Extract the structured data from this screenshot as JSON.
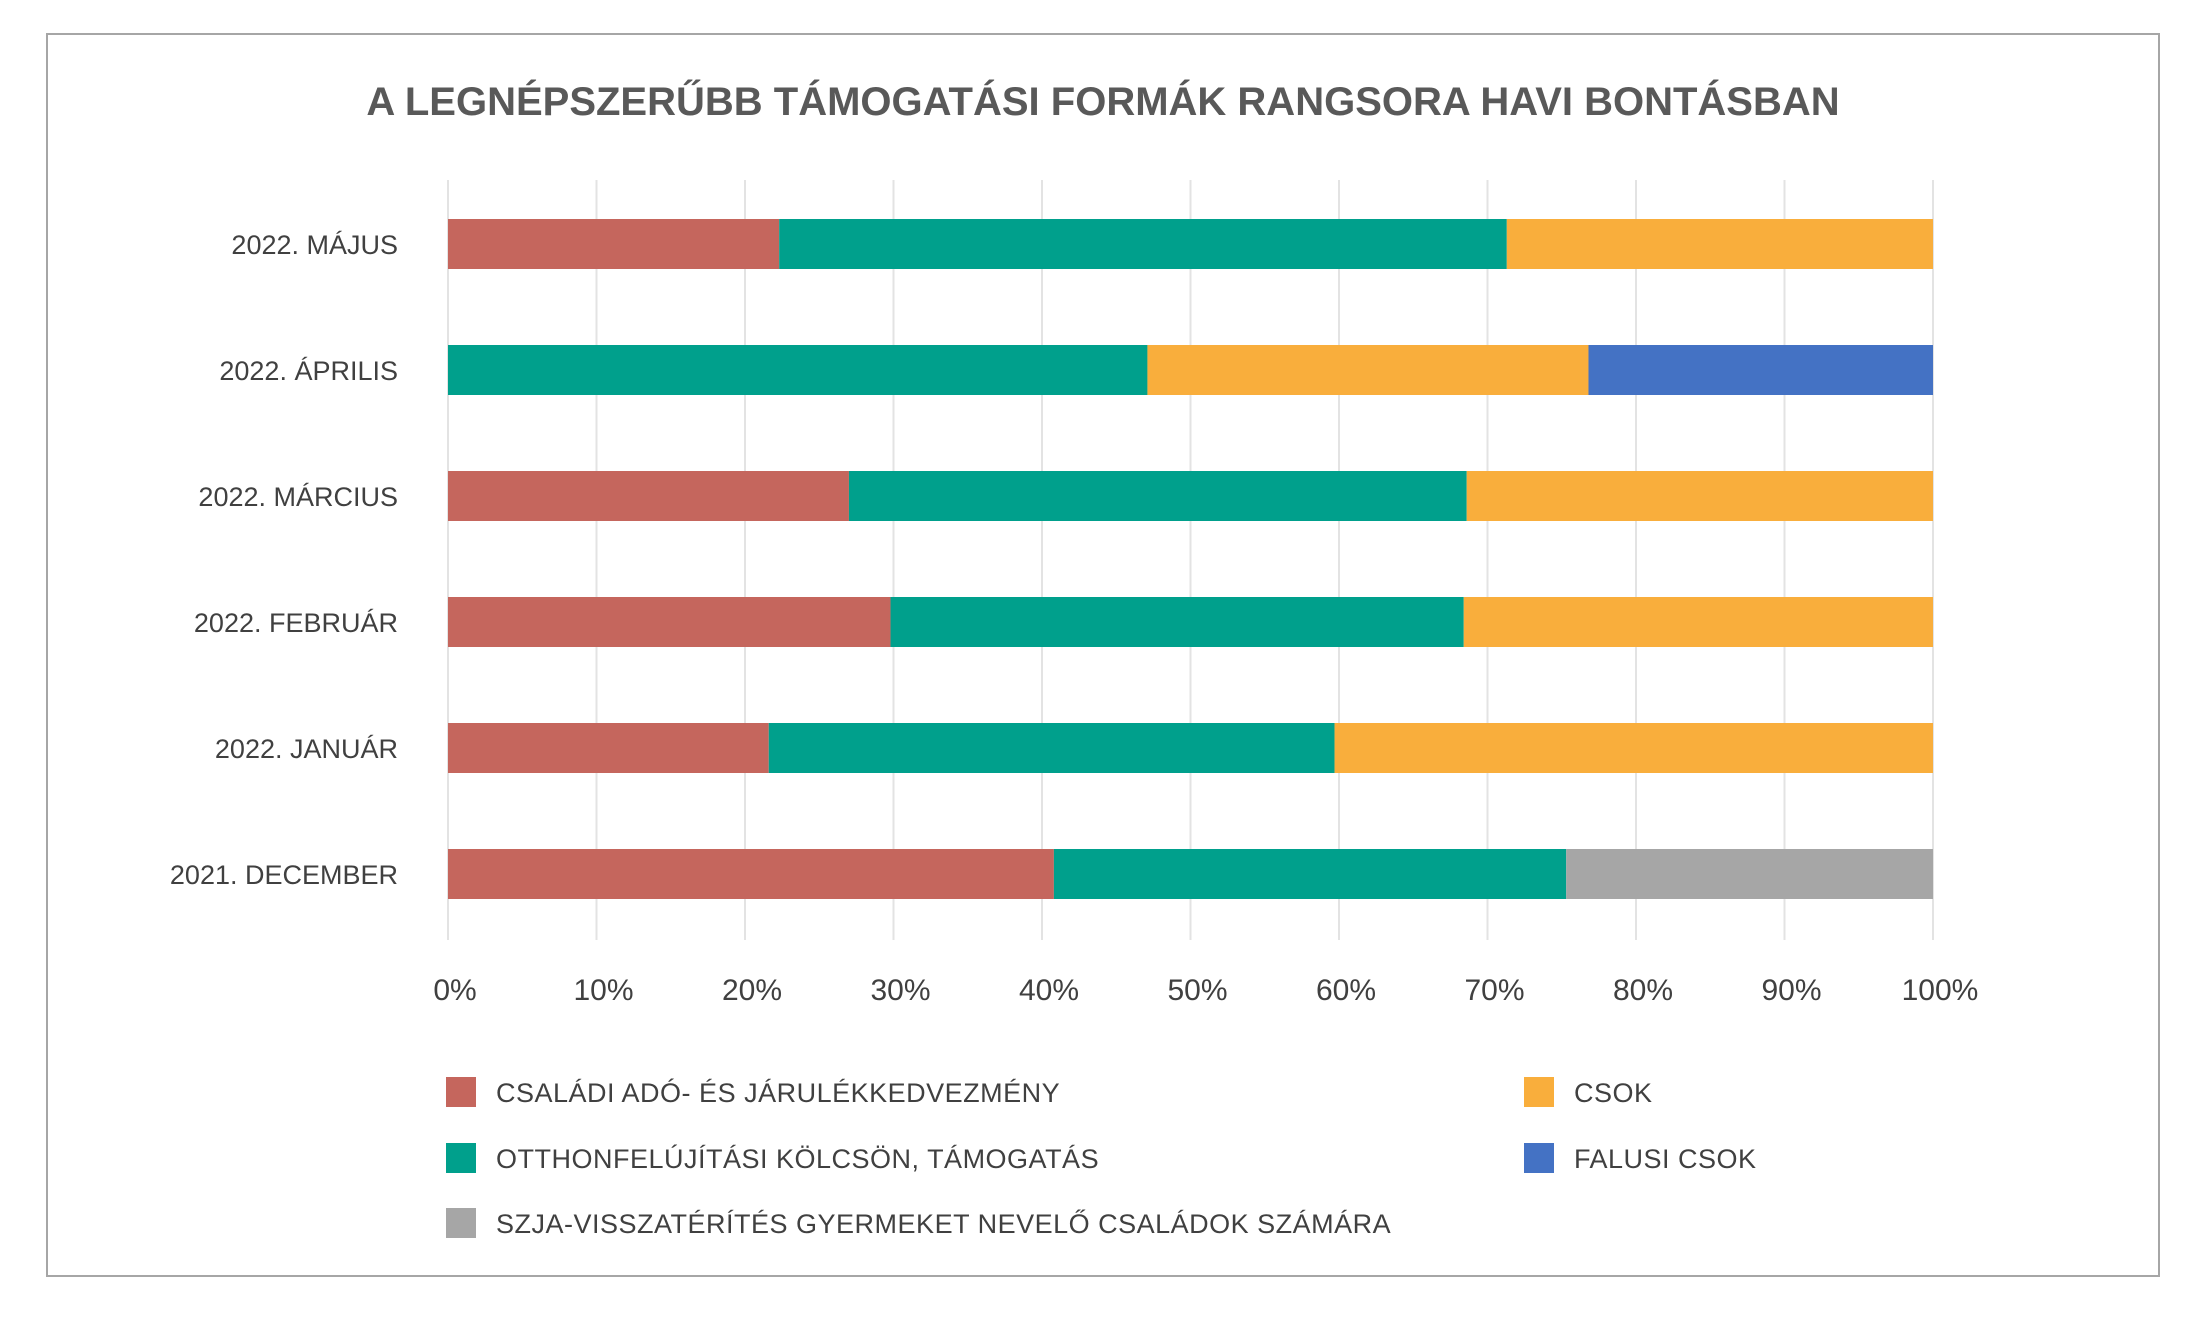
{
  "chart_data": {
    "type": "bar",
    "orientation": "horizontal",
    "stacked": "percent",
    "title": "A LEGNÉPSZERŰBB TÁMOGATÁSI FORMÁK RANGSORA HAVI BONTÁSBAN",
    "xlabel": "",
    "ylabel": "",
    "xlim": [
      0,
      100
    ],
    "x_ticks": [
      "0%",
      "10%",
      "20%",
      "30%",
      "40%",
      "50%",
      "60%",
      "70%",
      "80%",
      "90%",
      "100%"
    ],
    "grid": true,
    "legend_position": "bottom",
    "categories": [
      "2022. MÁJUS",
      "2022. ÁPRILIS",
      "2022. MÁRCIUS",
      "2022. FEBRUÁR",
      "2022. JANUÁR",
      "2021. DECEMBER"
    ],
    "series": [
      {
        "name": "CSALÁDI ADÓ- ÉS JÁRULÉKKEDVEZMÉNY",
        "color": "#c5665d",
        "values": [
          22.3,
          0,
          27.0,
          29.8,
          21.6,
          40.8
        ]
      },
      {
        "name": "OTTHONFELÚJÍTÁSI KÖLCSÖN, TÁMOGATÁS",
        "color": "#00a08c",
        "values": [
          49.0,
          47.1,
          41.6,
          38.6,
          38.1,
          34.5
        ]
      },
      {
        "name": "CSOK",
        "color": "#f9ae3c",
        "values": [
          28.7,
          29.7,
          31.4,
          31.6,
          40.3,
          0
        ]
      },
      {
        "name": "FALUSI CSOK",
        "color": "#4472c4",
        "values": [
          0,
          23.2,
          0,
          0,
          0,
          0
        ]
      },
      {
        "name": "SZJA-VISSZATÉRÍTÉS GYERMEKET NEVELŐ CSALÁDOK SZÁMÁRA",
        "color": "#a6a6a6",
        "values": [
          0,
          0,
          0,
          0,
          0,
          24.7
        ]
      }
    ],
    "legend_order": [
      0,
      2,
      1,
      3,
      4
    ]
  }
}
